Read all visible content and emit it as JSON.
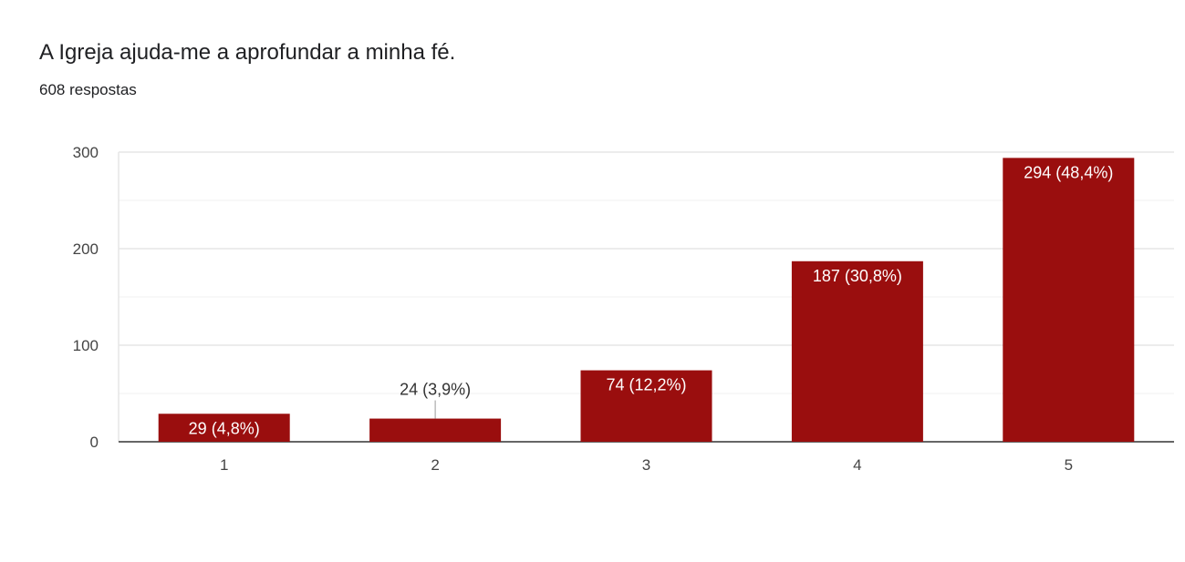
{
  "header": {
    "title": "A Igreja ajuda-me a aprofundar a minha fé.",
    "subtitle": "608 respostas"
  },
  "colors": {
    "bar": "#9a0e0e",
    "grid": "#e6e6e6",
    "minor_grid": "#f2f2f2",
    "axis": "#333333",
    "label_inside": "#ffffff",
    "label_outside": "#333333"
  },
  "chart_data": {
    "type": "bar",
    "title": "A Igreja ajuda-me a aprofundar a minha fé.",
    "subtitle": "608 respostas",
    "xlabel": "",
    "ylabel": "",
    "categories": [
      "1",
      "2",
      "3",
      "4",
      "5"
    ],
    "values": [
      29,
      24,
      74,
      187,
      294
    ],
    "data_labels": [
      "29 (4,8%)",
      "24 (3,9%)",
      "74 (12,2%)",
      "187 (30,8%)",
      "294 (48,4%)"
    ],
    "ylim": [
      0,
      300
    ],
    "yticks": [
      0,
      100,
      200,
      300
    ],
    "grid": true,
    "legend": "none"
  }
}
